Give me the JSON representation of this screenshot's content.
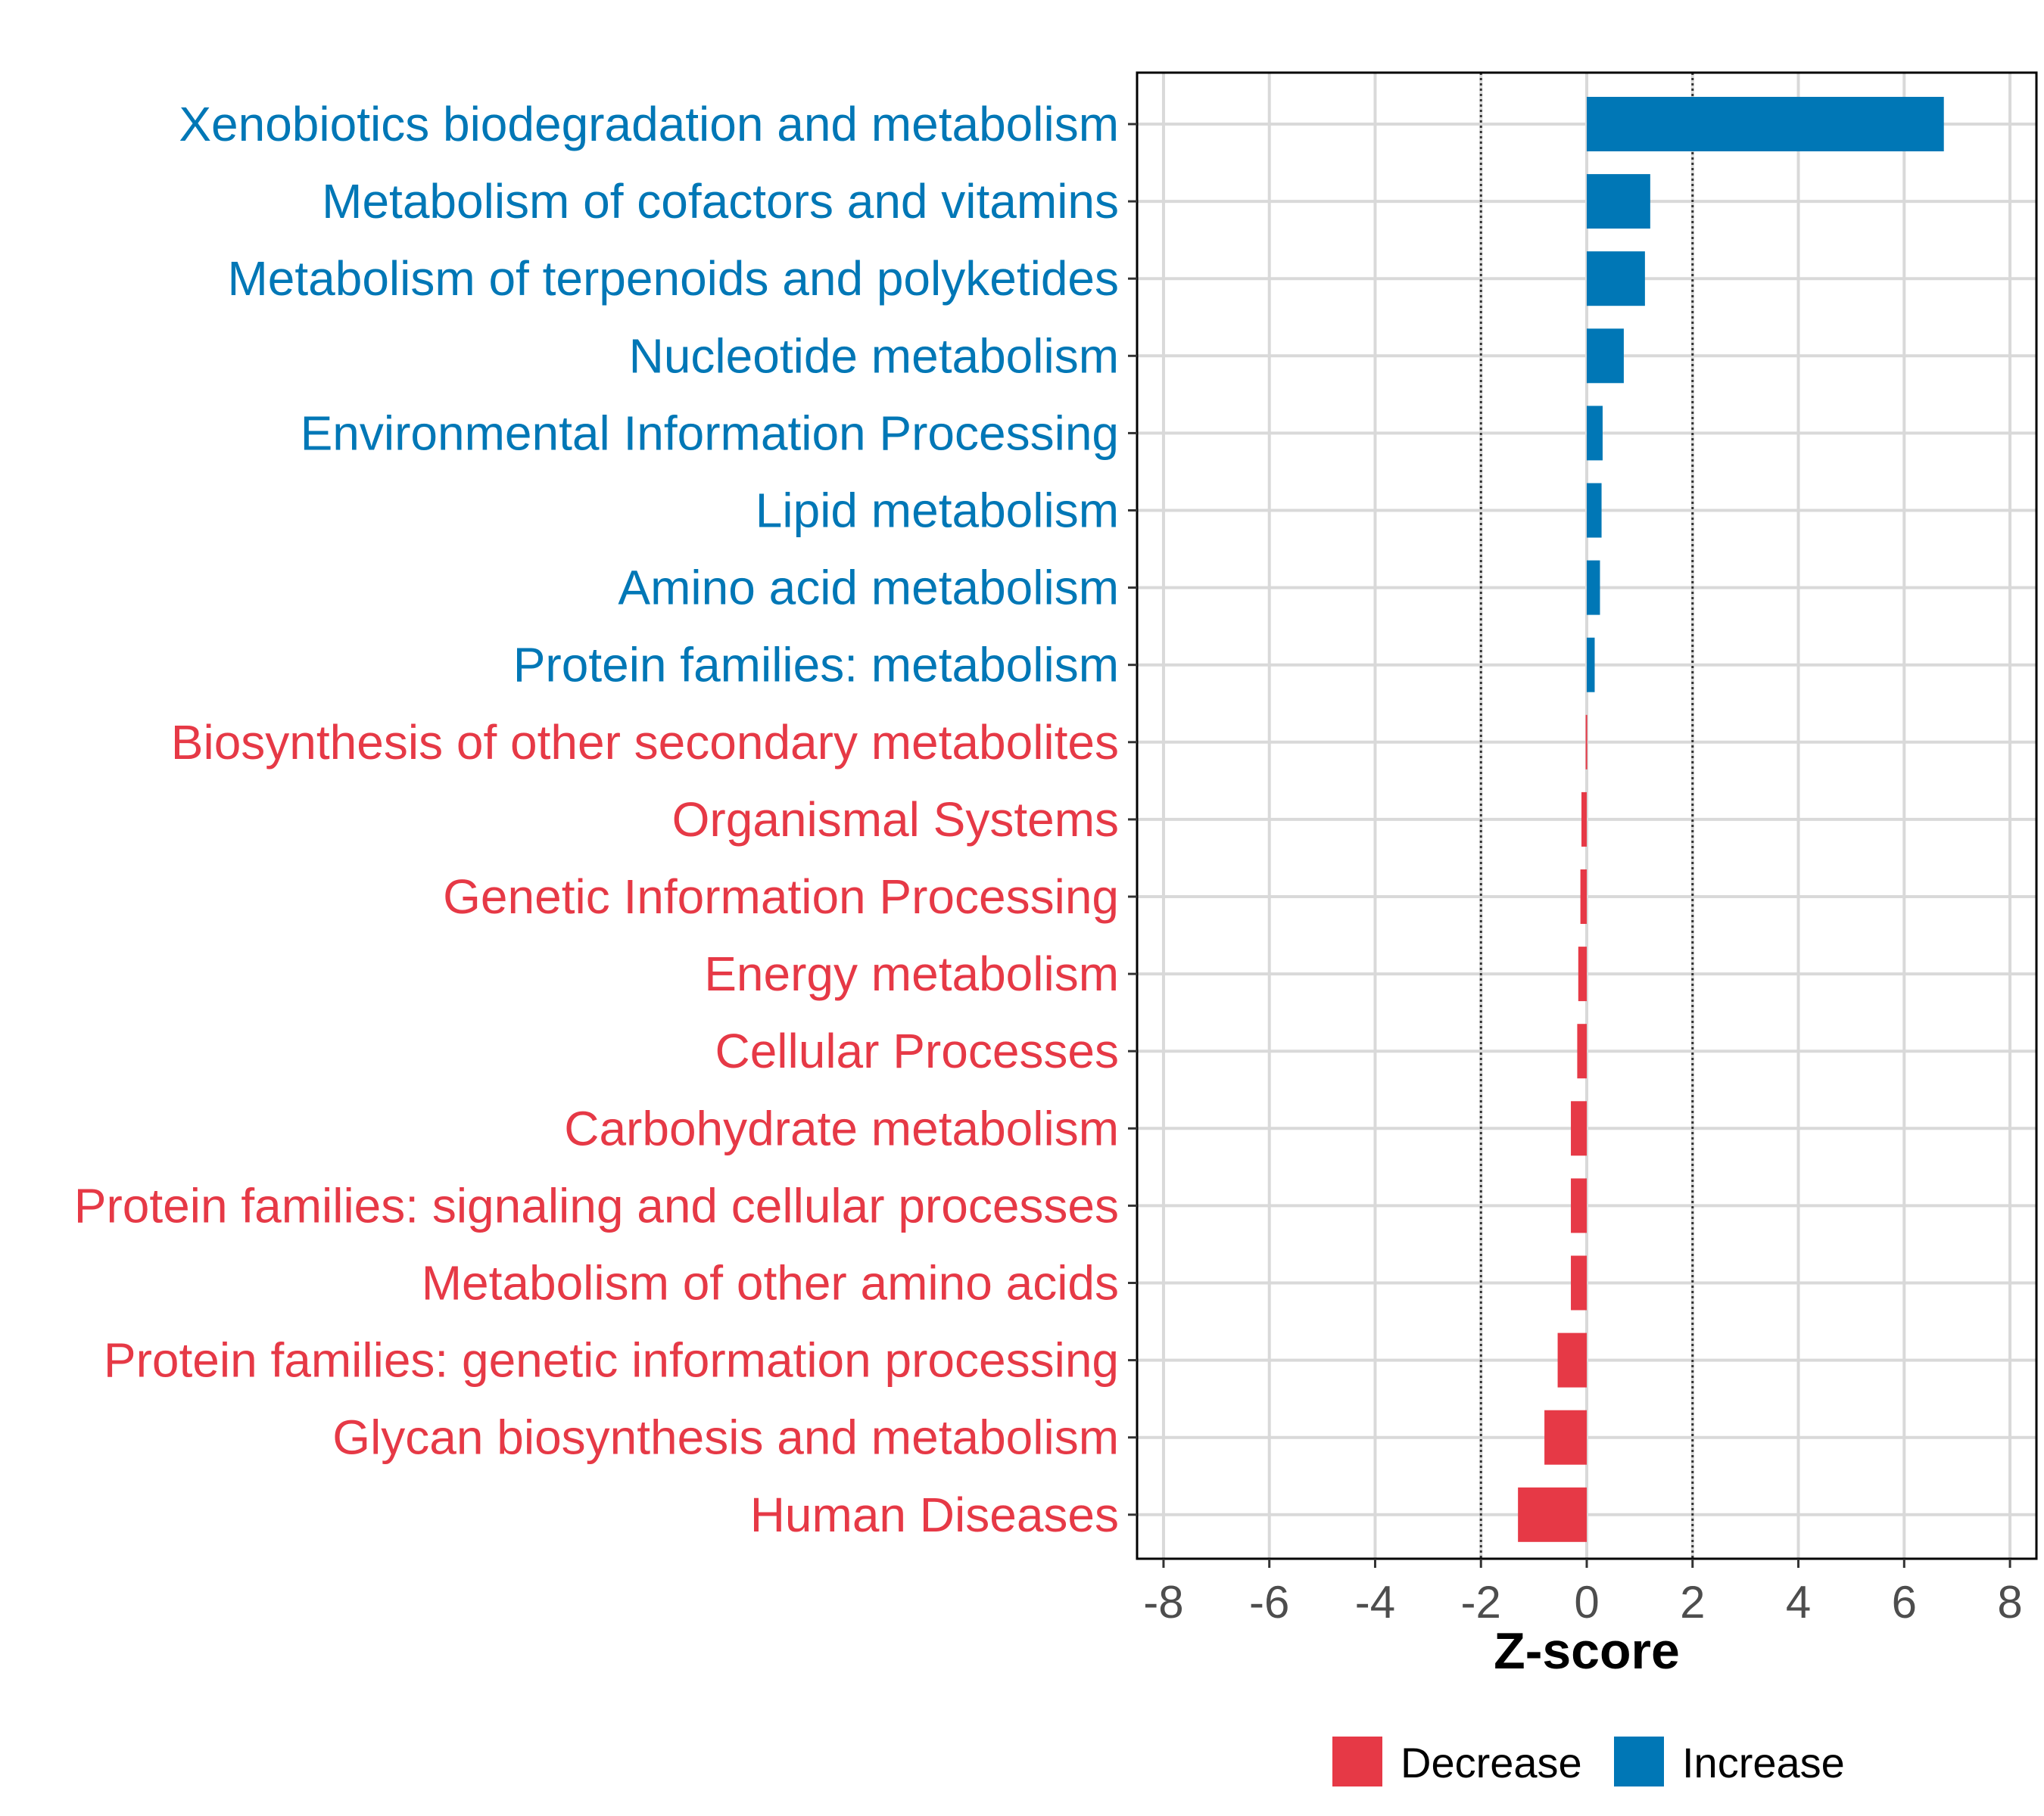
{
  "chart_data": {
    "type": "bar",
    "orientation": "horizontal",
    "title": "",
    "xlabel": "Z-score",
    "ylabel": "",
    "xlim": [
      -8.5,
      8.5
    ],
    "xticks": [
      -8,
      -6,
      -4,
      -2,
      0,
      2,
      4,
      6,
      8
    ],
    "xtick_labels": [
      "-8",
      "-6",
      "-4",
      "-2",
      "0",
      "2",
      "4",
      "6",
      "8"
    ],
    "reference_lines": [
      -2,
      2
    ],
    "grid": true,
    "legend_position": "bottom",
    "categories": [
      "Xenobiotics biodegradation and metabolism",
      "Metabolism of cofactors and vitamins",
      "Metabolism of terpenoids and polyketides",
      "Nucleotide metabolism",
      "Environmental Information Processing",
      "Lipid metabolism",
      "Amino acid metabolism",
      "Protein families: metabolism",
      "Biosynthesis of other secondary metabolites",
      "Organismal Systems",
      "Genetic Information Processing",
      "Energy metabolism",
      "Cellular Processes",
      "Carbohydrate metabolism",
      "Protein families: signaling and cellular processes",
      "Metabolism of other amino acids",
      "Protein families: genetic information processing",
      "Glycan biosynthesis and metabolism",
      "Human Diseases"
    ],
    "values": [
      6.75,
      1.2,
      1.1,
      0.7,
      0.3,
      0.28,
      0.25,
      0.15,
      -0.02,
      -0.1,
      -0.12,
      -0.16,
      -0.18,
      -0.3,
      -0.3,
      -0.3,
      -0.55,
      -0.8,
      -1.3
    ],
    "groups": [
      "Increase",
      "Increase",
      "Increase",
      "Increase",
      "Increase",
      "Increase",
      "Increase",
      "Increase",
      "Decrease",
      "Decrease",
      "Decrease",
      "Decrease",
      "Decrease",
      "Decrease",
      "Decrease",
      "Decrease",
      "Decrease",
      "Decrease",
      "Decrease"
    ],
    "legend": [
      {
        "name": "Decrease",
        "color": "#e63946"
      },
      {
        "name": "Increase",
        "color": "#0077b6"
      }
    ]
  }
}
